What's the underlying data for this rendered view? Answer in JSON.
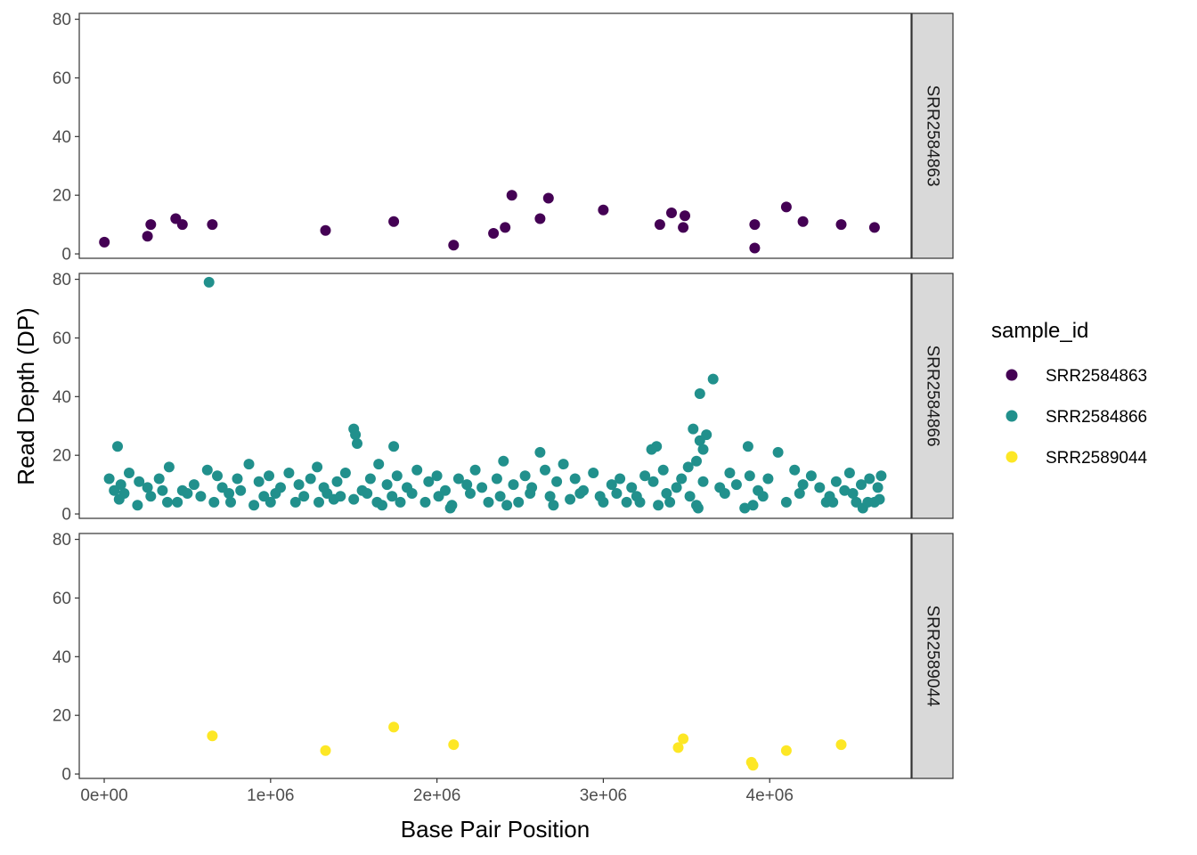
{
  "chart_data": {
    "type": "scatter",
    "facet": "rows",
    "x": {
      "label": "Base Pair Position",
      "lim": [
        -150000,
        4850000
      ],
      "ticks": [
        0,
        1000000,
        2000000,
        3000000,
        4000000
      ],
      "tick_labels": [
        "0e+00",
        "1e+06",
        "2e+06",
        "3e+06",
        "4e+06"
      ]
    },
    "y": {
      "label": "Read Depth (DP)",
      "lim": [
        -1.5,
        82
      ],
      "ticks": [
        0,
        20,
        40,
        60,
        80
      ],
      "tick_labels": [
        "0",
        "20",
        "40",
        "60",
        "80"
      ]
    },
    "legend": {
      "title": "sample_id",
      "position": "right"
    },
    "grid": false,
    "series": [
      {
        "name": "SRR2584863",
        "color": "#440154",
        "points": [
          [
            1000,
            4
          ],
          [
            260000,
            6
          ],
          [
            280000,
            10
          ],
          [
            430000,
            12
          ],
          [
            470000,
            10
          ],
          [
            650000,
            10
          ],
          [
            1330000,
            8
          ],
          [
            1740000,
            11
          ],
          [
            2100000,
            3
          ],
          [
            2340000,
            7
          ],
          [
            2410000,
            9
          ],
          [
            2450000,
            20
          ],
          [
            2620000,
            12
          ],
          [
            2670000,
            19
          ],
          [
            3000000,
            15
          ],
          [
            3340000,
            10
          ],
          [
            3410000,
            14
          ],
          [
            3480000,
            9
          ],
          [
            3490000,
            13
          ],
          [
            3910000,
            10
          ],
          [
            3910000,
            2
          ],
          [
            4100000,
            16
          ],
          [
            4200000,
            11
          ],
          [
            4430000,
            10
          ],
          [
            4630000,
            9
          ]
        ]
      },
      {
        "name": "SRR2584866",
        "color": "#21908C",
        "points": [
          [
            630000,
            79
          ],
          [
            3580000,
            41
          ],
          [
            3660000,
            46
          ],
          [
            3540000,
            29
          ],
          [
            3620000,
            27
          ],
          [
            1500000,
            29
          ],
          [
            1510000,
            27
          ],
          [
            1520000,
            24
          ],
          [
            3580000,
            25
          ],
          [
            3600000,
            22
          ],
          [
            3560000,
            18
          ],
          [
            80000,
            23
          ],
          [
            1740000,
            23
          ],
          [
            3320000,
            23
          ],
          [
            3870000,
            23
          ],
          [
            4050000,
            21
          ],
          [
            2620000,
            21
          ],
          [
            3290000,
            22
          ],
          [
            90000,
            5
          ],
          [
            200000,
            3
          ],
          [
            380000,
            4
          ],
          [
            440000,
            4
          ],
          [
            660000,
            4
          ],
          [
            760000,
            4
          ],
          [
            900000,
            3
          ],
          [
            1000000,
            4
          ],
          [
            1150000,
            4
          ],
          [
            1290000,
            4
          ],
          [
            1380000,
            5
          ],
          [
            1500000,
            5
          ],
          [
            1640000,
            4
          ],
          [
            1670000,
            3
          ],
          [
            1780000,
            4
          ],
          [
            1930000,
            4
          ],
          [
            2080000,
            2
          ],
          [
            2090000,
            3
          ],
          [
            2310000,
            4
          ],
          [
            2420000,
            3
          ],
          [
            2490000,
            4
          ],
          [
            2700000,
            3
          ],
          [
            2800000,
            5
          ],
          [
            3000000,
            4
          ],
          [
            3140000,
            4
          ],
          [
            3220000,
            4
          ],
          [
            3330000,
            3
          ],
          [
            3400000,
            4
          ],
          [
            3560000,
            3
          ],
          [
            3570000,
            2
          ],
          [
            3850000,
            2
          ],
          [
            3900000,
            3
          ],
          [
            4100000,
            4
          ],
          [
            4340000,
            4
          ],
          [
            4380000,
            4
          ],
          [
            4520000,
            4
          ],
          [
            4560000,
            2
          ],
          [
            4590000,
            4
          ],
          [
            4630000,
            4
          ],
          [
            4660000,
            5
          ],
          [
            30000,
            12
          ],
          [
            100000,
            10
          ],
          [
            150000,
            14
          ],
          [
            210000,
            11
          ],
          [
            260000,
            9
          ],
          [
            330000,
            12
          ],
          [
            390000,
            16
          ],
          [
            470000,
            8
          ],
          [
            540000,
            10
          ],
          [
            620000,
            15
          ],
          [
            680000,
            13
          ],
          [
            710000,
            9
          ],
          [
            800000,
            12
          ],
          [
            870000,
            17
          ],
          [
            930000,
            11
          ],
          [
            990000,
            13
          ],
          [
            1060000,
            9
          ],
          [
            1110000,
            14
          ],
          [
            1170000,
            10
          ],
          [
            1240000,
            12
          ],
          [
            1280000,
            16
          ],
          [
            1320000,
            9
          ],
          [
            1400000,
            11
          ],
          [
            1450000,
            14
          ],
          [
            1550000,
            8
          ],
          [
            1600000,
            12
          ],
          [
            1650000,
            17
          ],
          [
            1700000,
            10
          ],
          [
            1760000,
            13
          ],
          [
            1820000,
            9
          ],
          [
            1880000,
            15
          ],
          [
            1950000,
            11
          ],
          [
            2000000,
            13
          ],
          [
            2050000,
            8
          ],
          [
            2130000,
            12
          ],
          [
            2180000,
            10
          ],
          [
            2230000,
            15
          ],
          [
            2270000,
            9
          ],
          [
            2360000,
            12
          ],
          [
            2400000,
            18
          ],
          [
            2460000,
            10
          ],
          [
            2530000,
            13
          ],
          [
            2570000,
            9
          ],
          [
            2650000,
            15
          ],
          [
            2720000,
            11
          ],
          [
            2760000,
            17
          ],
          [
            2830000,
            12
          ],
          [
            2880000,
            8
          ],
          [
            2940000,
            14
          ],
          [
            3050000,
            10
          ],
          [
            3100000,
            12
          ],
          [
            3170000,
            9
          ],
          [
            3250000,
            13
          ],
          [
            3300000,
            11
          ],
          [
            3360000,
            15
          ],
          [
            3440000,
            9
          ],
          [
            3470000,
            12
          ],
          [
            3510000,
            16
          ],
          [
            3600000,
            11
          ],
          [
            3700000,
            9
          ],
          [
            3760000,
            14
          ],
          [
            3800000,
            10
          ],
          [
            3880000,
            13
          ],
          [
            3930000,
            8
          ],
          [
            3990000,
            12
          ],
          [
            4150000,
            15
          ],
          [
            4200000,
            10
          ],
          [
            4250000,
            13
          ],
          [
            4300000,
            9
          ],
          [
            4400000,
            11
          ],
          [
            4450000,
            8
          ],
          [
            4480000,
            14
          ],
          [
            4550000,
            10
          ],
          [
            4600000,
            12
          ],
          [
            4650000,
            9
          ],
          [
            4670000,
            13
          ],
          [
            60000,
            8
          ],
          [
            120000,
            7
          ],
          [
            280000,
            6
          ],
          [
            350000,
            8
          ],
          [
            500000,
            7
          ],
          [
            580000,
            6
          ],
          [
            750000,
            7
          ],
          [
            820000,
            8
          ],
          [
            960000,
            6
          ],
          [
            1030000,
            7
          ],
          [
            1200000,
            6
          ],
          [
            1340000,
            7
          ],
          [
            1420000,
            6
          ],
          [
            1580000,
            7
          ],
          [
            1730000,
            6
          ],
          [
            1850000,
            7
          ],
          [
            2010000,
            6
          ],
          [
            2200000,
            7
          ],
          [
            2380000,
            6
          ],
          [
            2560000,
            7
          ],
          [
            2680000,
            6
          ],
          [
            2860000,
            7
          ],
          [
            2980000,
            6
          ],
          [
            3080000,
            7
          ],
          [
            3200000,
            6
          ],
          [
            3380000,
            7
          ],
          [
            3520000,
            6
          ],
          [
            3730000,
            7
          ],
          [
            3960000,
            6
          ],
          [
            4180000,
            7
          ],
          [
            4360000,
            6
          ],
          [
            4500000,
            7
          ]
        ]
      },
      {
        "name": "SRR2589044",
        "color": "#FDE725",
        "points": [
          [
            650000,
            13
          ],
          [
            1330000,
            8
          ],
          [
            1740000,
            16
          ],
          [
            2100000,
            10
          ],
          [
            3450000,
            9
          ],
          [
            3480000,
            12
          ],
          [
            3890000,
            4
          ],
          [
            3900000,
            3
          ],
          [
            4100000,
            8
          ],
          [
            4430000,
            10
          ]
        ]
      }
    ]
  }
}
